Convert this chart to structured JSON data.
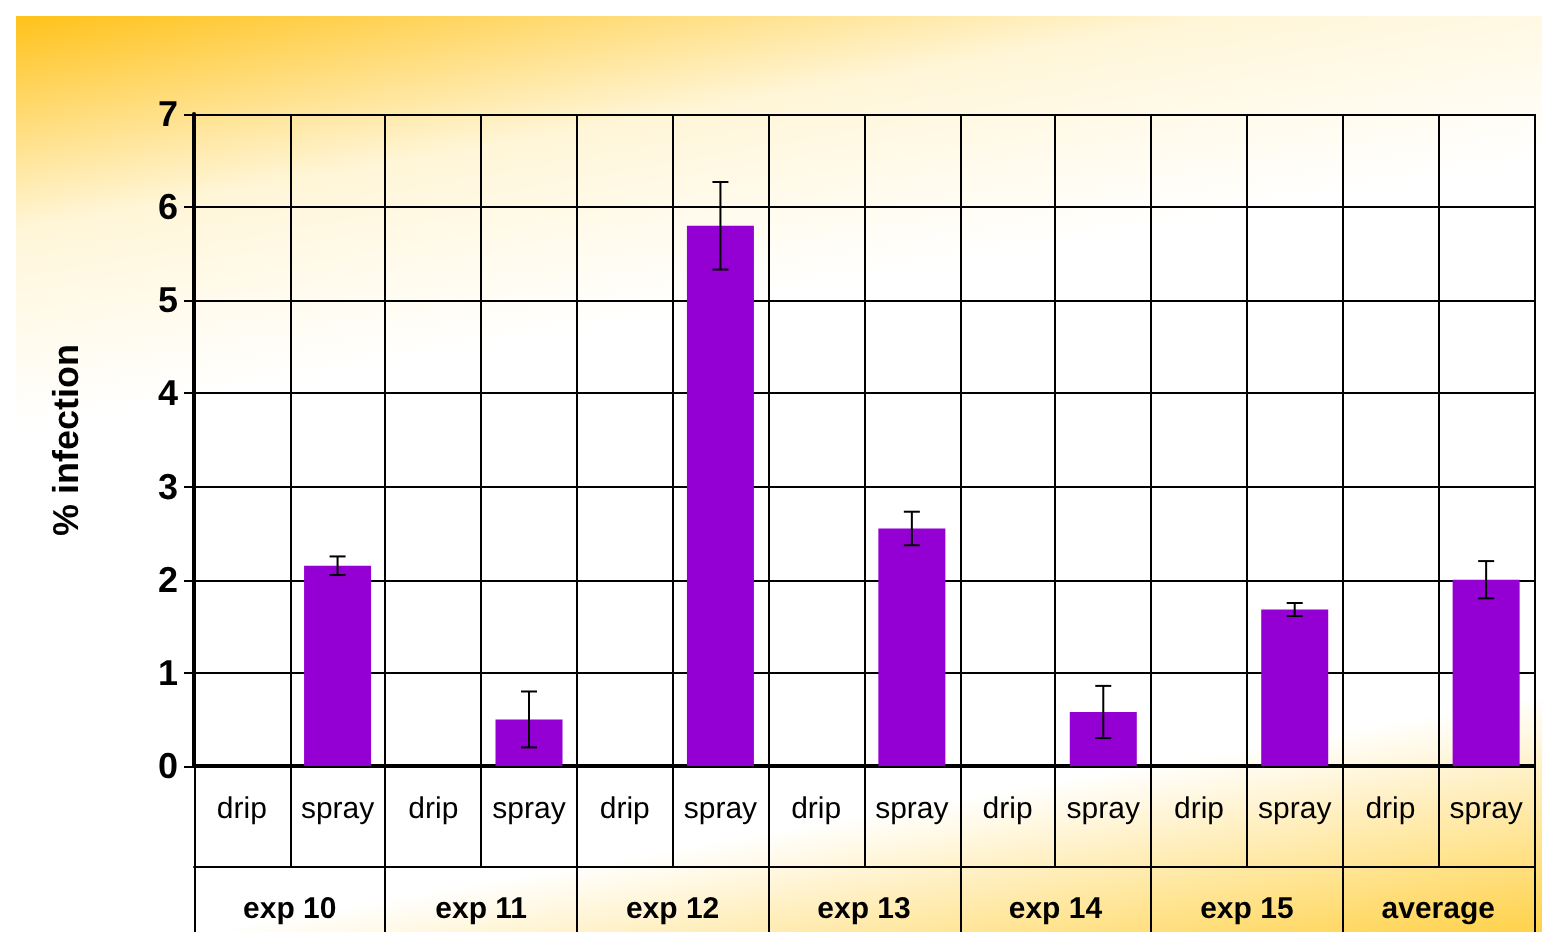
{
  "chart_data": {
    "type": "bar",
    "ylabel": "% infection",
    "categories": [
      "drip",
      "spray",
      "drip",
      "spray",
      "drip",
      "spray",
      "drip",
      "spray",
      "drip",
      "spray",
      "drip",
      "spray",
      "drip",
      "spray"
    ],
    "values": [
      0,
      2.15,
      0,
      0.5,
      0,
      5.8,
      0,
      2.55,
      0,
      0.58,
      0,
      1.68,
      0,
      2.0
    ],
    "errors": [
      null,
      0.1,
      null,
      0.3,
      null,
      0.47,
      null,
      0.18,
      null,
      0.28,
      null,
      0.07,
      null,
      0.2
    ],
    "color": "#9400d3",
    "annotations": [
      "exp 10",
      "exp 11",
      "exp 12",
      "exp 13",
      "exp 14",
      "exp 15",
      "average"
    ],
    "ylim": [
      0,
      7
    ],
    "yticks": [
      0,
      1,
      2,
      3,
      4,
      5,
      6,
      7
    ],
    "grid": true
  }
}
